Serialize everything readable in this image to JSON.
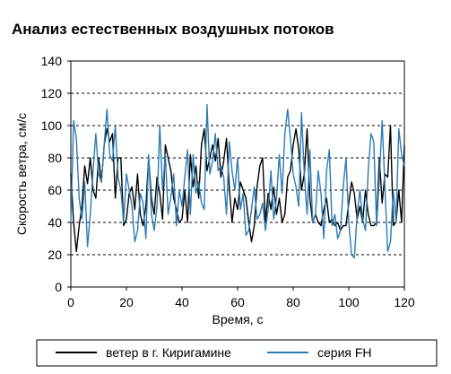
{
  "chart_data": {
    "type": "line",
    "title": "Анализ естественных воздушных потоков",
    "xlabel": "Время, с",
    "ylabel": "Скорость ветра, см/с",
    "xlim": [
      0,
      120
    ],
    "ylim": [
      0,
      140
    ],
    "x_ticks": [
      "0",
      "20",
      "40",
      "60",
      "80",
      "100",
      "120"
    ],
    "y_ticks": [
      "0",
      "20",
      "40",
      "60",
      "80",
      "100",
      "120",
      "140"
    ],
    "grid": "horizontal-dashed",
    "legend_position": "bottom",
    "series": [
      {
        "name": "ветер в г. Киригамине",
        "color": "#000000",
        "x": [
          0,
          1,
          2,
          3,
          4,
          5,
          6,
          7,
          8,
          9,
          10,
          11,
          12,
          13,
          14,
          15,
          16,
          17,
          18,
          19,
          20,
          21,
          22,
          23,
          24,
          25,
          26,
          27,
          28,
          29,
          30,
          31,
          32,
          33,
          34,
          35,
          36,
          37,
          38,
          39,
          40,
          41,
          42,
          43,
          44,
          45,
          46,
          47,
          48,
          49,
          50,
          51,
          52,
          53,
          54,
          55,
          56,
          57,
          58,
          59,
          60,
          61,
          62,
          63,
          64,
          65,
          66,
          67,
          68,
          69,
          70,
          71,
          72,
          73,
          74,
          75,
          76,
          77,
          78,
          79,
          80,
          81,
          82,
          83,
          84,
          85,
          86,
          87,
          88,
          89,
          90,
          91,
          92,
          93,
          94,
          95,
          96,
          97,
          98,
          99,
          100,
          101,
          102,
          103,
          104,
          105,
          106,
          107,
          108,
          109,
          110,
          111,
          112,
          113,
          114,
          115,
          116,
          117,
          118,
          119,
          120
        ],
        "y": [
          70,
          40,
          22,
          38,
          50,
          75,
          64,
          80,
          60,
          55,
          80,
          65,
          88,
          98,
          90,
          95,
          55,
          80,
          80,
          38,
          42,
          58,
          62,
          48,
          70,
          45,
          38,
          50,
          80,
          55,
          45,
          68,
          58,
          42,
          88,
          80,
          72,
          55,
          48,
          40,
          42,
          60,
          40,
          82,
          62,
          75,
          55,
          88,
          98,
          72,
          80,
          88,
          78,
          92,
          68,
          78,
          92,
          62,
          40,
          55,
          48,
          65,
          60,
          55,
          40,
          28,
          38,
          62,
          75,
          80,
          40,
          58,
          48,
          62,
          45,
          55,
          40,
          45,
          68,
          72,
          88,
          98,
          85,
          60,
          70,
          98,
          55,
          40,
          45,
          40,
          38,
          48,
          55,
          40,
          42,
          38,
          40,
          35,
          38,
          38,
          52,
          65,
          58,
          42,
          50,
          40,
          60,
          45,
          38,
          38,
          40,
          80,
          52,
          70,
          68,
          100,
          38,
          40,
          60,
          40,
          88
        ]
      },
      {
        "name": "серия FH",
        "color": "#2b7cb6",
        "x": [
          0,
          1,
          2,
          3,
          4,
          5,
          6,
          7,
          8,
          9,
          10,
          11,
          12,
          13,
          14,
          15,
          16,
          17,
          18,
          19,
          20,
          21,
          22,
          23,
          24,
          25,
          26,
          27,
          28,
          29,
          30,
          31,
          32,
          33,
          34,
          35,
          36,
          37,
          38,
          39,
          40,
          41,
          42,
          43,
          44,
          45,
          46,
          47,
          48,
          49,
          50,
          51,
          52,
          53,
          54,
          55,
          56,
          57,
          58,
          59,
          60,
          61,
          62,
          63,
          64,
          65,
          66,
          67,
          68,
          69,
          70,
          71,
          72,
          73,
          74,
          75,
          76,
          77,
          78,
          79,
          80,
          81,
          82,
          83,
          84,
          85,
          86,
          87,
          88,
          89,
          90,
          91,
          92,
          93,
          94,
          95,
          96,
          97,
          98,
          99,
          100,
          101,
          102,
          103,
          104,
          105,
          106,
          107,
          108,
          109,
          110,
          111,
          112,
          113,
          114,
          115,
          116,
          117,
          118,
          119,
          120
        ],
        "y": [
          40,
          103,
          92,
          55,
          42,
          65,
          25,
          45,
          72,
          95,
          70,
          65,
          88,
          110,
          82,
          78,
          100,
          68,
          60,
          40,
          70,
          60,
          50,
          28,
          35,
          58,
          52,
          30,
          82,
          45,
          35,
          50,
          100,
          60,
          82,
          45,
          56,
          70,
          38,
          60,
          50,
          68,
          85,
          45,
          82,
          58,
          65,
          52,
          48,
          113,
          70,
          78,
          95,
          72,
          75,
          68,
          45,
          90,
          72,
          60,
          80,
          48,
          58,
          32,
          35,
          48,
          62,
          42,
          45,
          52,
          35,
          48,
          72,
          42,
          55,
          82,
          58,
          95,
          110,
          92,
          70,
          62,
          50,
          108,
          70,
          45,
          85,
          40,
          45,
          72,
          58,
          30,
          72,
          85,
          38,
          45,
          30,
          35,
          62,
          80,
          40,
          20,
          18,
          45,
          60,
          42,
          35,
          72,
          95,
          90,
          38,
          68,
          103,
          62,
          22,
          28,
          60,
          40,
          98,
          82,
          75
        ]
      }
    ]
  }
}
